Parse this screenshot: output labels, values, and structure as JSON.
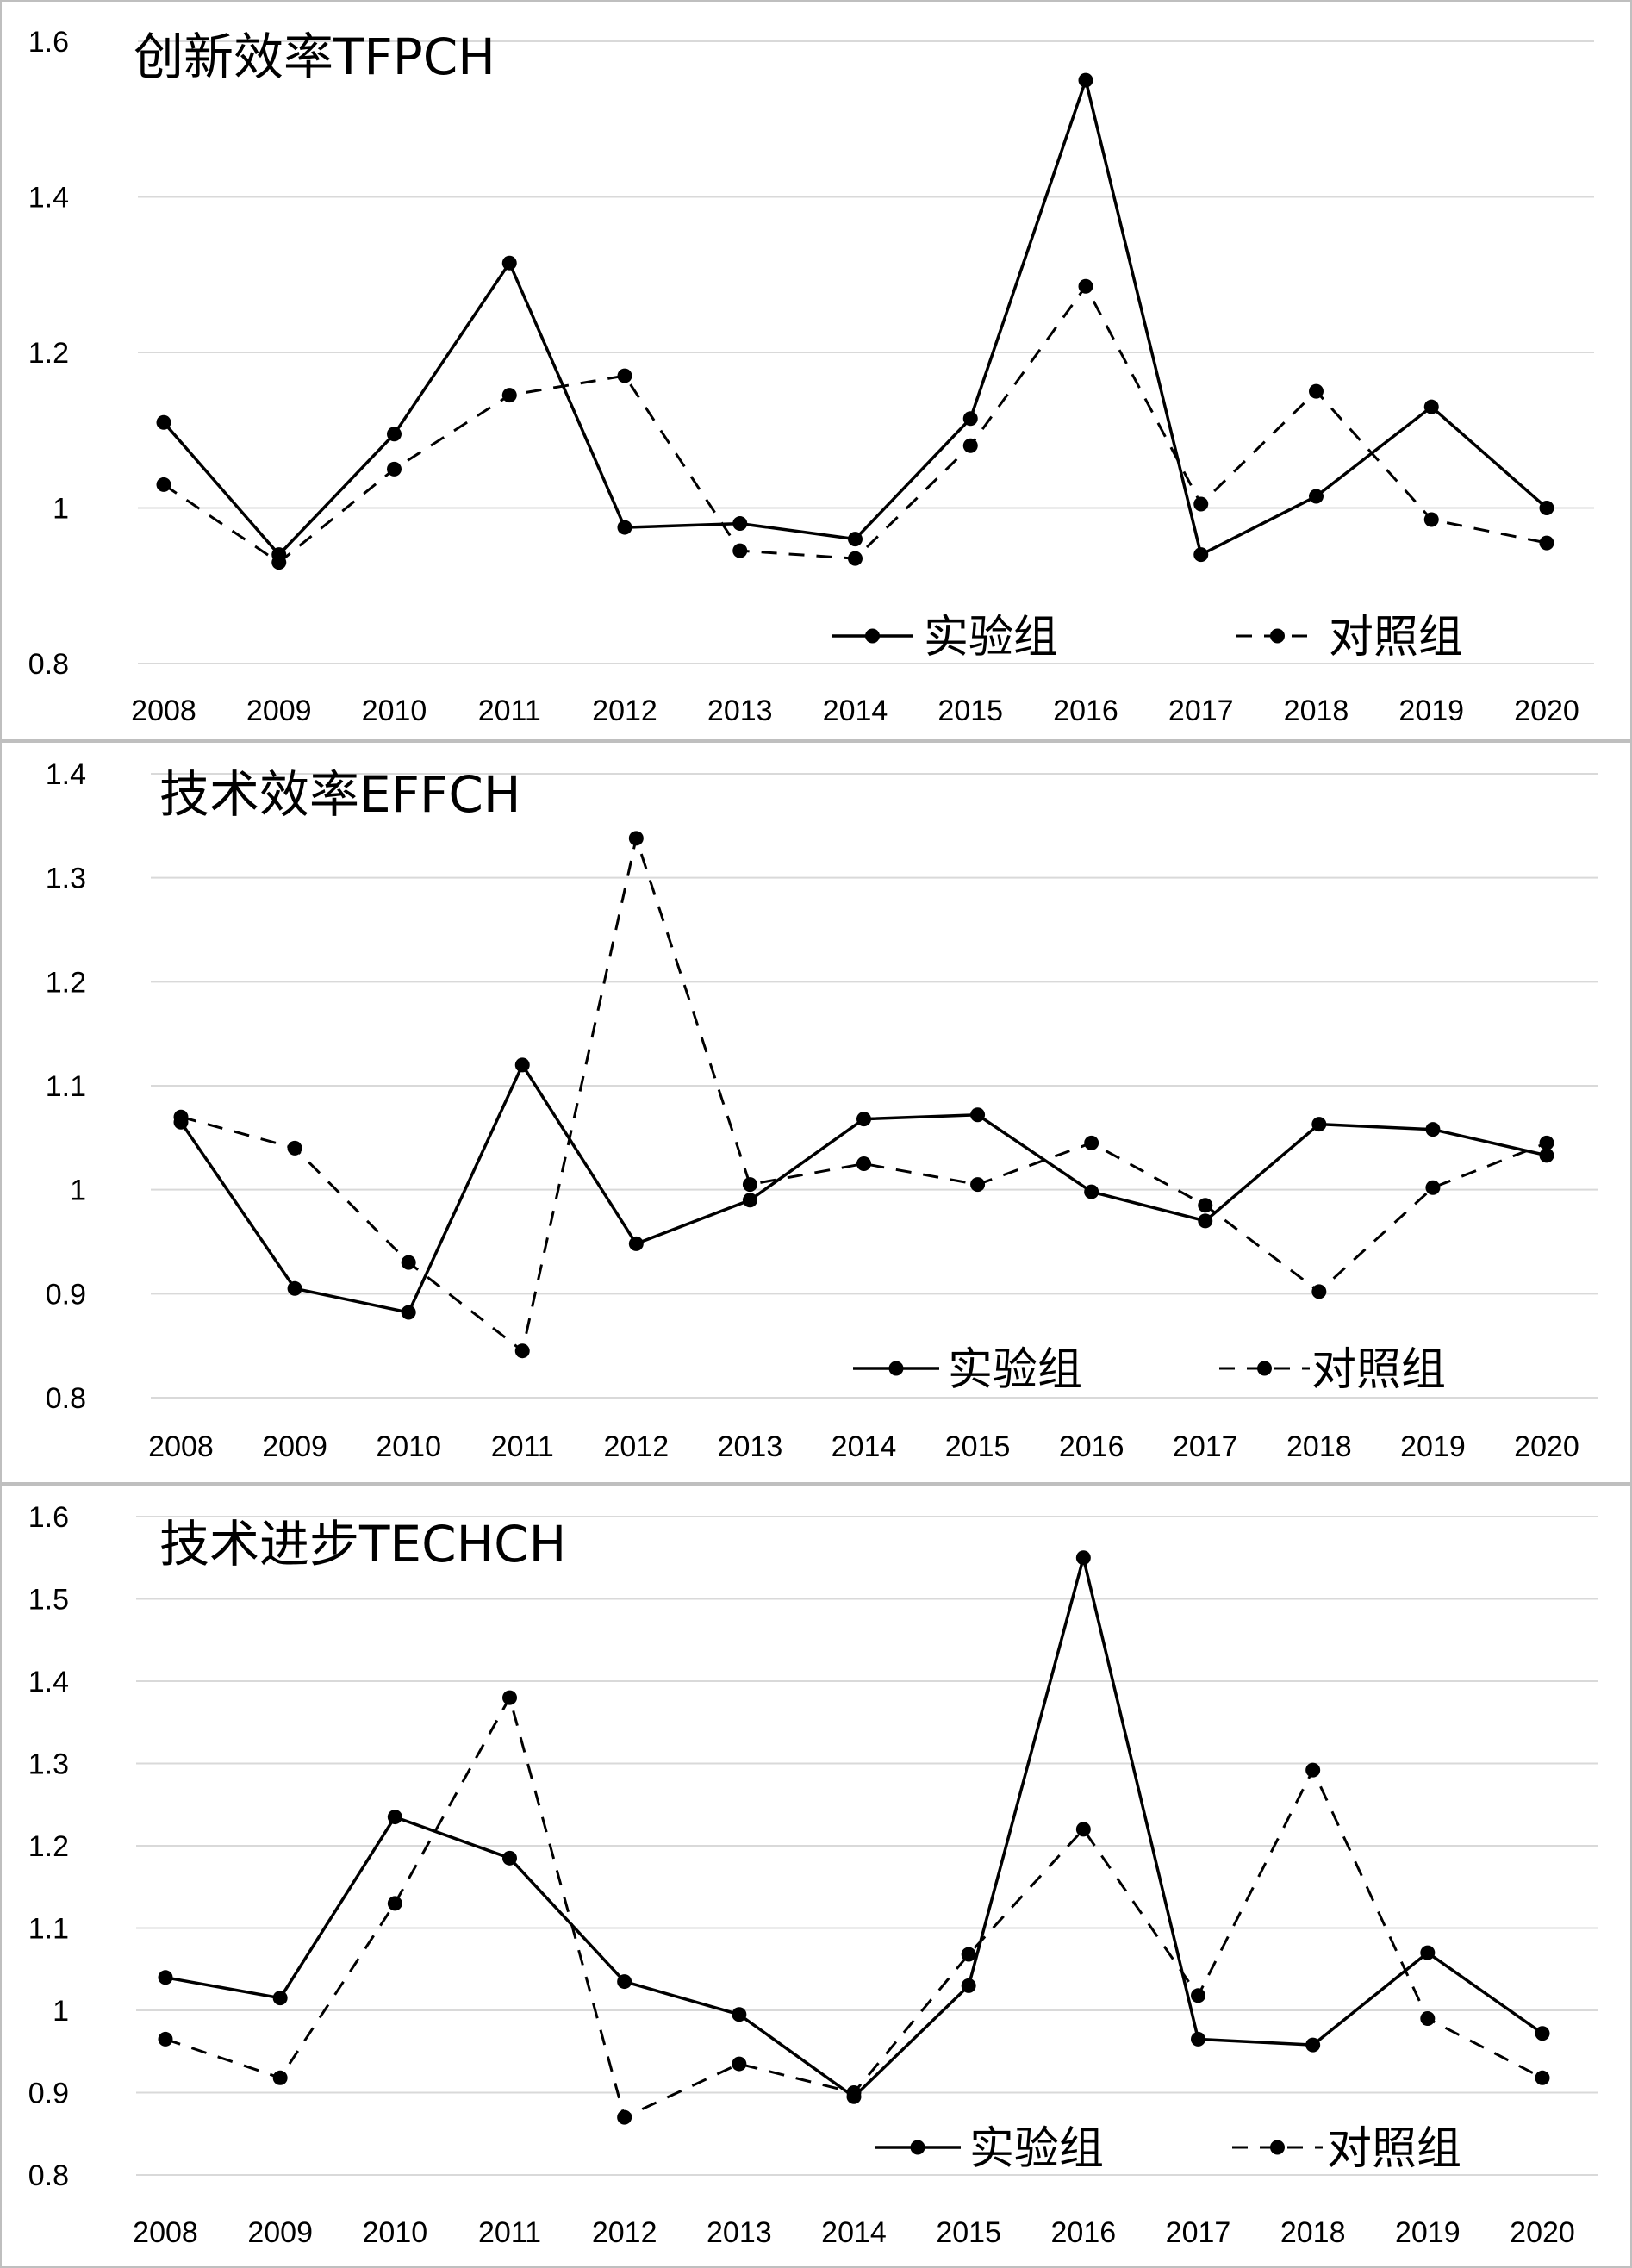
{
  "chart_data": [
    {
      "type": "line",
      "title": "创新效率TFPCH",
      "categories": [
        "2008",
        "2009",
        "2010",
        "2011",
        "2012",
        "2013",
        "2014",
        "2015",
        "2016",
        "2017",
        "2018",
        "2019",
        "2020"
      ],
      "ylim": [
        0.8,
        1.6
      ],
      "yticks": [
        "0.8",
        "1",
        "1.2",
        "1.4",
        "1.6"
      ],
      "grid": true,
      "legend_position": "bottom-right",
      "series": [
        {
          "name": "实验组",
          "style": "solid",
          "values": [
            1.11,
            0.94,
            1.095,
            1.315,
            0.975,
            0.98,
            0.96,
            1.115,
            1.55,
            0.94,
            1.015,
            1.13,
            1.0
          ]
        },
        {
          "name": "对照组",
          "style": "dashed",
          "values": [
            1.03,
            0.93,
            1.05,
            1.145,
            1.17,
            0.945,
            0.935,
            1.08,
            1.285,
            1.005,
            1.15,
            0.985,
            0.955
          ]
        }
      ]
    },
    {
      "type": "line",
      "title": "技术效率EFFCH",
      "categories": [
        "2008",
        "2009",
        "2010",
        "2011",
        "2012",
        "2013",
        "2014",
        "2015",
        "2016",
        "2017",
        "2018",
        "2019",
        "2020"
      ],
      "ylim": [
        0.8,
        1.4
      ],
      "yticks": [
        "0.8",
        "0.9",
        "1",
        "1.1",
        "1.2",
        "1.3",
        "1.4"
      ],
      "grid": true,
      "legend_position": "bottom-right",
      "series": [
        {
          "name": "实验组",
          "style": "solid",
          "values": [
            1.065,
            0.905,
            0.882,
            1.12,
            0.948,
            0.99,
            1.068,
            1.072,
            0.998,
            0.97,
            1.063,
            1.058,
            1.033
          ]
        },
        {
          "name": "对照组",
          "style": "dashed",
          "values": [
            1.07,
            1.04,
            0.93,
            0.845,
            1.338,
            1.005,
            1.025,
            1.005,
            1.045,
            0.985,
            0.902,
            1.002,
            1.045
          ]
        }
      ]
    },
    {
      "type": "line",
      "title": "技术进步TECHCH",
      "categories": [
        "2008",
        "2009",
        "2010",
        "2011",
        "2012",
        "2013",
        "2014",
        "2015",
        "2016",
        "2017",
        "2018",
        "2019",
        "2020"
      ],
      "ylim": [
        0.8,
        1.6
      ],
      "yticks": [
        "0.8",
        "0.9",
        "1",
        "1.1",
        "1.2",
        "1.3",
        "1.4",
        "1.5",
        "1.6"
      ],
      "grid": true,
      "legend_position": "bottom-right",
      "series": [
        {
          "name": "实验组",
          "style": "solid",
          "values": [
            1.04,
            1.015,
            1.235,
            1.185,
            1.035,
            0.995,
            0.895,
            1.03,
            1.55,
            0.965,
            0.958,
            1.07,
            0.972
          ]
        },
        {
          "name": "对照组",
          "style": "dashed",
          "values": [
            0.965,
            0.918,
            1.13,
            1.38,
            0.87,
            0.935,
            0.9,
            1.068,
            1.22,
            1.018,
            1.292,
            0.99,
            0.918
          ]
        }
      ]
    }
  ]
}
